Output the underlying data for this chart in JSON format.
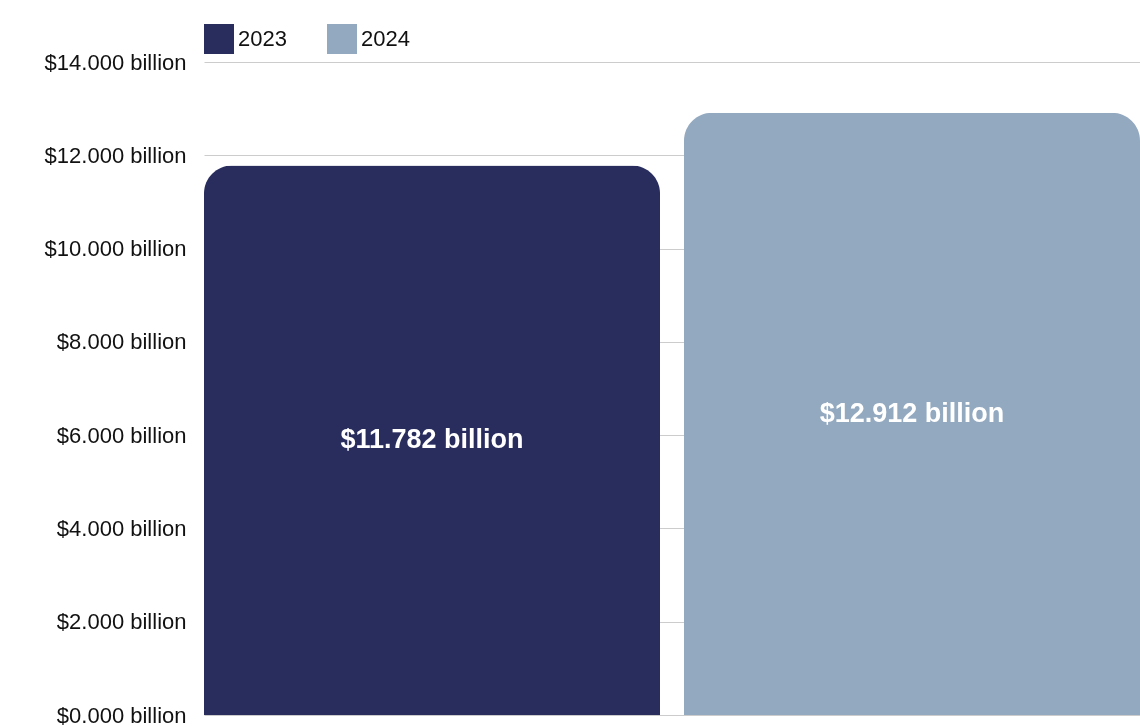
{
  "chart_data": {
    "type": "bar",
    "categories": [
      null
    ],
    "series": [
      {
        "name": "2023",
        "color": "#282d5e",
        "values": [
          11.782
        ],
        "value_labels": [
          "$11.782 billion"
        ]
      },
      {
        "name": "2024",
        "color": "#93a9c0",
        "values": [
          12.912
        ],
        "value_labels": [
          "$12.912 billion"
        ]
      }
    ],
    "ylim": [
      0,
      14
    ],
    "yticks": [
      {
        "value": 0,
        "label": "$0.000 billion"
      },
      {
        "value": 2,
        "label": "$2.000 billion"
      },
      {
        "value": 4,
        "label": "$4.000 billion"
      },
      {
        "value": 6,
        "label": "$6.000 billion"
      },
      {
        "value": 8,
        "label": "$8.000 billion"
      },
      {
        "value": 10,
        "label": "$10.000 billion"
      },
      {
        "value": 12,
        "label": "$12.000 billion"
      },
      {
        "value": 14,
        "label": "$14.000 billion"
      }
    ],
    "grid": "y",
    "legend": "top",
    "tick_labels": "y"
  }
}
